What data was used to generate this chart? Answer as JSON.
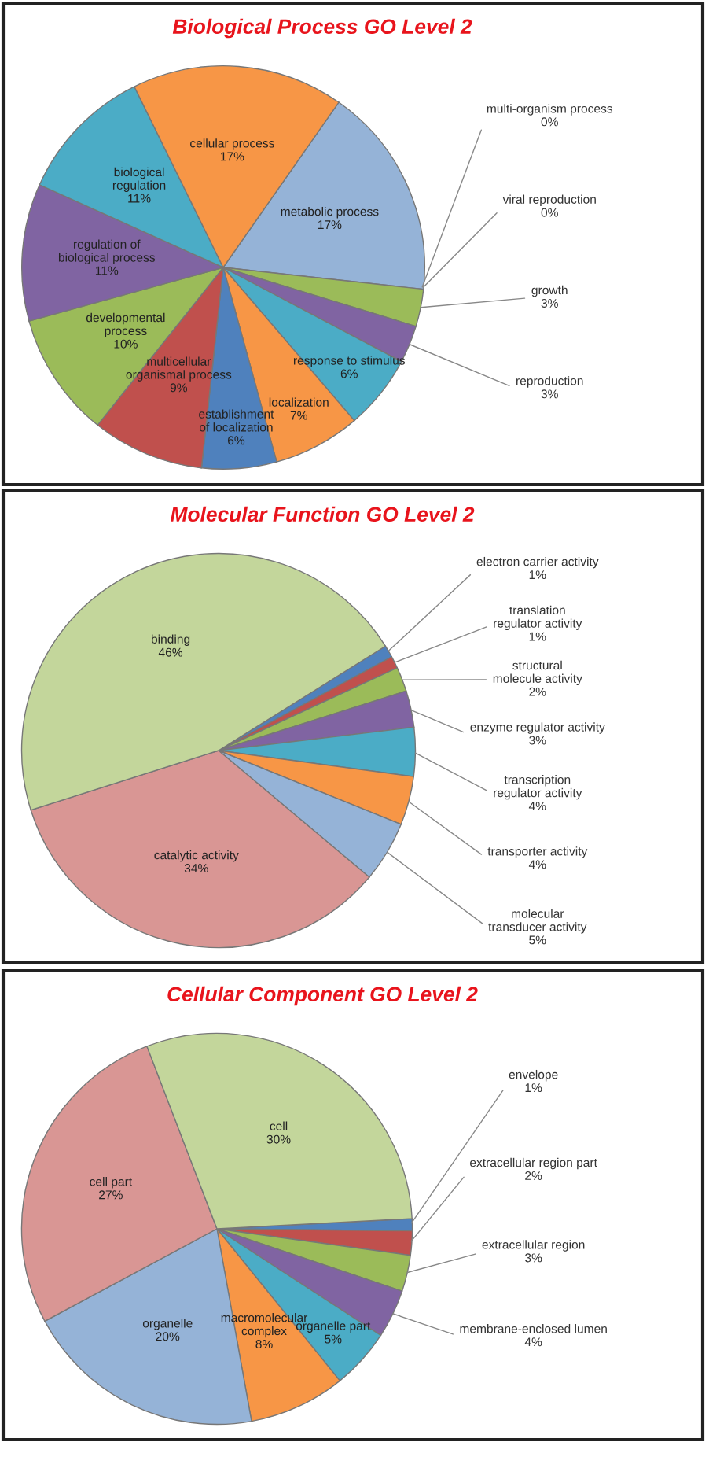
{
  "chart_data": [
    {
      "type": "pie",
      "title": "Biological Process GO Level 2",
      "legend": false,
      "categories": [
        "metabolic process",
        "multi-organism process",
        "viral reproduction",
        "growth",
        "reproduction",
        "response to stimulus",
        "localization",
        "establishment of localization",
        "multicellular organismal process",
        "developmental process",
        "regulation of biological process",
        "biological regulation",
        "cellular process"
      ],
      "values": [
        17,
        0,
        0,
        3,
        3,
        6,
        7,
        6,
        9,
        10,
        11,
        11,
        17
      ],
      "value_labels": [
        "17%",
        "0%",
        "0%",
        "3%",
        "3%",
        "6%",
        "7%",
        "6%",
        "9%",
        "10%",
        "11%",
        "11%",
        "17%"
      ],
      "colors": [
        "#95b3d7",
        "#c0504d",
        "#4f81bd",
        "#9bbb59",
        "#8064a2",
        "#4bacc6",
        "#f79646",
        "#4f81bd",
        "#c0504d",
        "#9bbb59",
        "#8064a2",
        "#4bacc6",
        "#f79646"
      ]
    },
    {
      "type": "pie",
      "title": "Molecular Function GO Level 2",
      "legend": false,
      "categories": [
        "electron carrier activity",
        "translation regulator activity",
        "structural molecule activity",
        "enzyme regulator activity",
        "transcription regulator activity",
        "transporter activity",
        "molecular transducer activity",
        "catalytic activity",
        "binding"
      ],
      "values": [
        1,
        1,
        2,
        3,
        4,
        4,
        5,
        34,
        46
      ],
      "value_labels": [
        "1%",
        "1%",
        "2%",
        "3%",
        "4%",
        "4%",
        "5%",
        "34%",
        "46%"
      ],
      "colors": [
        "#4f81bd",
        "#c0504d",
        "#9bbb59",
        "#8064a2",
        "#4bacc6",
        "#f79646",
        "#95b3d7",
        "#d99694",
        "#c3d69b"
      ]
    },
    {
      "type": "pie",
      "title": "Cellular Component GO Level 2",
      "legend": false,
      "categories": [
        "envelope",
        "extracellular region part",
        "extracellular region",
        "membrane-enclosed lumen",
        "organelle part",
        "macromolecular complex",
        "organelle",
        "cell part",
        "cell"
      ],
      "values": [
        1,
        2,
        3,
        4,
        5,
        8,
        20,
        27,
        30
      ],
      "value_labels": [
        "1%",
        "2%",
        "3%",
        "4%",
        "5%",
        "8%",
        "20%",
        "27%",
        "30%"
      ],
      "colors": [
        "#4f81bd",
        "#c0504d",
        "#9bbb59",
        "#8064a2",
        "#4bacc6",
        "#f79646",
        "#95b3d7",
        "#d99694",
        "#c3d69b"
      ]
    }
  ]
}
